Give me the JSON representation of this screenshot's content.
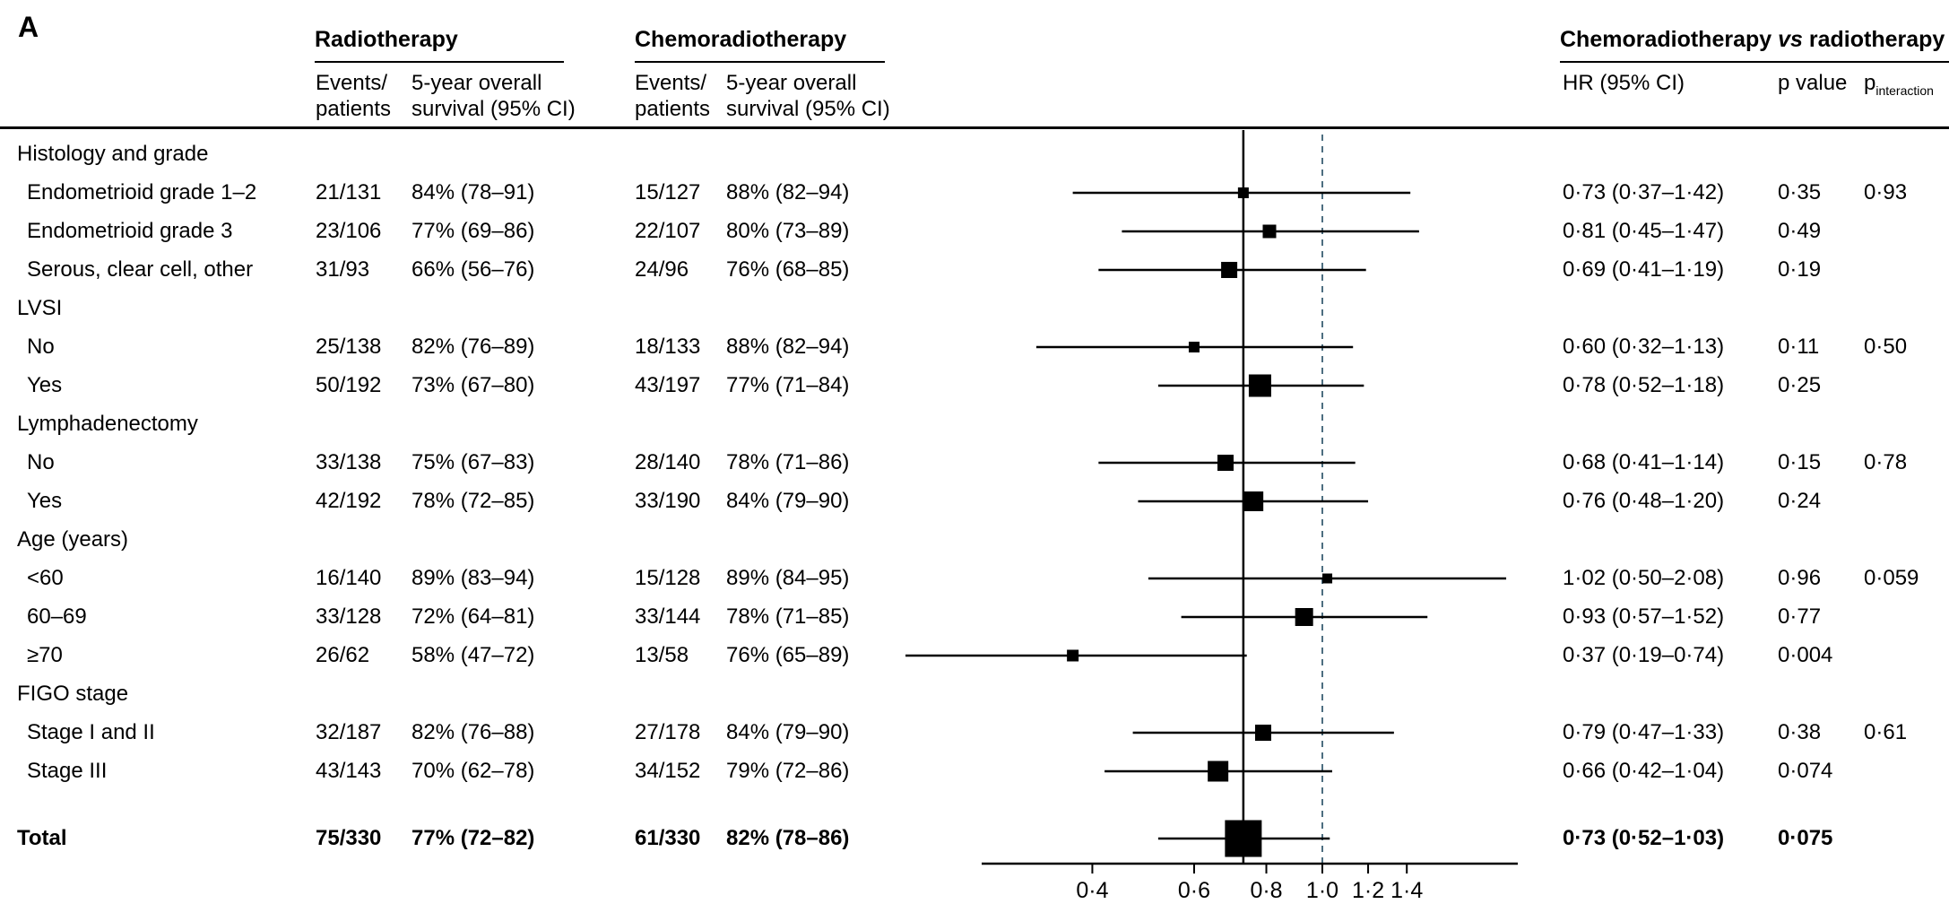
{
  "panel_label": "A",
  "header": {
    "radiotherapy": {
      "title": "Radiotherapy",
      "col_events": "Events/\npatients",
      "col_survival": "5-year overall\nsurvival (95% CI)"
    },
    "chemoradiotherapy": {
      "title": "Chemoradiotherapy",
      "col_events": "Events/\npatients",
      "col_survival": "5-year overall\nsurvival (95% CI)"
    },
    "comparison": {
      "title_prefix": "Chemoradiotherapy ",
      "title_vs": "vs",
      "title_suffix": " radiotherapy",
      "col_hr": "HR (95% CI)",
      "col_p": "p value",
      "col_p_interaction_base": "p",
      "col_p_interaction_sub": "interaction"
    }
  },
  "colors": {
    "text": "#000000",
    "background": "#ffffff",
    "marker": "#000000",
    "reference_dashed_line": "#4d6e80"
  },
  "chart_data": {
    "type": "forest",
    "title": "Chemoradiotherapy vs radiotherapy — subgroup analysis of 5-year overall survival",
    "x_axis": {
      "scale": "log",
      "ticks": [
        0.4,
        0.6,
        0.8,
        1.0,
        1.2,
        1.4
      ],
      "tick_labels": [
        "0·4",
        "0·6",
        "0·8",
        "1·0",
        "1·2",
        "1·4"
      ],
      "axis_range": [
        0.26,
        2.18
      ],
      "reference_line": 1.0,
      "overall_hr_line": 0.73
    },
    "rows": [
      {
        "type": "group",
        "label": "Histology and grade"
      },
      {
        "type": "item",
        "label": "Endometrioid grade 1–2",
        "rt_events": "21/131",
        "rt_survival": "84% (78–91)",
        "crt_events": "15/127",
        "crt_survival": "88% (82–94)",
        "hr": 0.73,
        "ci_low": 0.37,
        "ci_high": 1.42,
        "hr_text": "0·73 (0·37–1·42)",
        "p": "0·35",
        "p_interaction": "0·93",
        "marker_size": 12
      },
      {
        "type": "item",
        "label": "Endometrioid grade 3",
        "rt_events": "23/106",
        "rt_survival": "77% (69–86)",
        "crt_events": "22/107",
        "crt_survival": "80% (73–89)",
        "hr": 0.81,
        "ci_low": 0.45,
        "ci_high": 1.47,
        "hr_text": "0·81 (0·45–1·47)",
        "p": "0·49",
        "p_interaction": "",
        "marker_size": 15
      },
      {
        "type": "item",
        "label": "Serous, clear cell, other",
        "rt_events": "31/93",
        "rt_survival": "66% (56–76)",
        "crt_events": "24/96",
        "crt_survival": "76% (68–85)",
        "hr": 0.69,
        "ci_low": 0.41,
        "ci_high": 1.19,
        "hr_text": "0·69 (0·41–1·19)",
        "p": "0·19",
        "p_interaction": "",
        "marker_size": 18
      },
      {
        "type": "group",
        "label": "LVSI"
      },
      {
        "type": "item",
        "label": "No",
        "rt_events": "25/138",
        "rt_survival": "82% (76–89)",
        "crt_events": "18/133",
        "crt_survival": "88% (82–94)",
        "hr": 0.6,
        "ci_low": 0.32,
        "ci_high": 1.13,
        "hr_text": "0·60 (0·32–1·13)",
        "p": "0·11",
        "p_interaction": "0·50",
        "marker_size": 12
      },
      {
        "type": "item",
        "label": "Yes",
        "rt_events": "50/192",
        "rt_survival": "73% (67–80)",
        "crt_events": "43/197",
        "crt_survival": "77% (71–84)",
        "hr": 0.78,
        "ci_low": 0.52,
        "ci_high": 1.18,
        "hr_text": "0·78 (0·52–1·18)",
        "p": "0·25",
        "p_interaction": "",
        "marker_size": 25
      },
      {
        "type": "group",
        "label": "Lymphadenectomy"
      },
      {
        "type": "item",
        "label": "No",
        "rt_events": "33/138",
        "rt_survival": "75% (67–83)",
        "crt_events": "28/140",
        "crt_survival": "78% (71–86)",
        "hr": 0.68,
        "ci_low": 0.41,
        "ci_high": 1.14,
        "hr_text": "0·68 (0·41–1·14)",
        "p": "0·15",
        "p_interaction": "0·78",
        "marker_size": 18
      },
      {
        "type": "item",
        "label": "Yes",
        "rt_events": "42/192",
        "rt_survival": "78% (72–85)",
        "crt_events": "33/190",
        "crt_survival": "84% (79–90)",
        "hr": 0.76,
        "ci_low": 0.48,
        "ci_high": 1.2,
        "hr_text": "0·76 (0·48–1·20)",
        "p": "0·24",
        "p_interaction": "",
        "marker_size": 22
      },
      {
        "type": "group",
        "label": "Age (years)"
      },
      {
        "type": "item",
        "label": "<60",
        "rt_events": "16/140",
        "rt_survival": "89% (83–94)",
        "crt_events": "15/128",
        "crt_survival": "89% (84–95)",
        "hr": 1.02,
        "ci_low": 0.5,
        "ci_high": 2.08,
        "hr_text": "1·02 (0·50–2·08)",
        "p": "0·96",
        "p_interaction": "0·059",
        "marker_size": 11
      },
      {
        "type": "item",
        "label": "60–69",
        "rt_events": "33/128",
        "rt_survival": "72% (64–81)",
        "crt_events": "33/144",
        "crt_survival": "78% (71–85)",
        "hr": 0.93,
        "ci_low": 0.57,
        "ci_high": 1.52,
        "hr_text": "0·93 (0·57–1·52)",
        "p": "0·77",
        "p_interaction": "",
        "marker_size": 20
      },
      {
        "type": "item",
        "label": "≥70",
        "rt_events": "26/62",
        "rt_survival": "58% (47–72)",
        "crt_events": "13/58",
        "crt_survival": "76% (65–89)",
        "hr": 0.37,
        "ci_low": 0.19,
        "ci_high": 0.74,
        "hr_text": "0·37 (0·19–0·74)",
        "p": "0·004",
        "p_interaction": "",
        "marker_size": 13
      },
      {
        "type": "group",
        "label": "FIGO stage"
      },
      {
        "type": "item",
        "label": "Stage I and II",
        "rt_events": "32/187",
        "rt_survival": "82% (76–88)",
        "crt_events": "27/178",
        "crt_survival": "84% (79–90)",
        "hr": 0.79,
        "ci_low": 0.47,
        "ci_high": 1.33,
        "hr_text": "0·79 (0·47–1·33)",
        "p": "0·38",
        "p_interaction": "0·61",
        "marker_size": 18
      },
      {
        "type": "item",
        "label": "Stage III",
        "rt_events": "43/143",
        "rt_survival": "70% (62–78)",
        "crt_events": "34/152",
        "crt_survival": "79% (72–86)",
        "hr": 0.66,
        "ci_low": 0.42,
        "ci_high": 1.04,
        "hr_text": "0·66 (0·42–1·04)",
        "p": "0·074",
        "p_interaction": "",
        "marker_size": 23
      },
      {
        "type": "total",
        "label": "Total",
        "rt_events": "75/330",
        "rt_survival": "77% (72–82)",
        "crt_events": "61/330",
        "crt_survival": "82% (78–86)",
        "hr": 0.73,
        "ci_low": 0.52,
        "ci_high": 1.03,
        "hr_text": "0·73 (0·52–1·03)",
        "p": "0·075",
        "p_interaction": "",
        "marker_size": 41
      }
    ]
  }
}
